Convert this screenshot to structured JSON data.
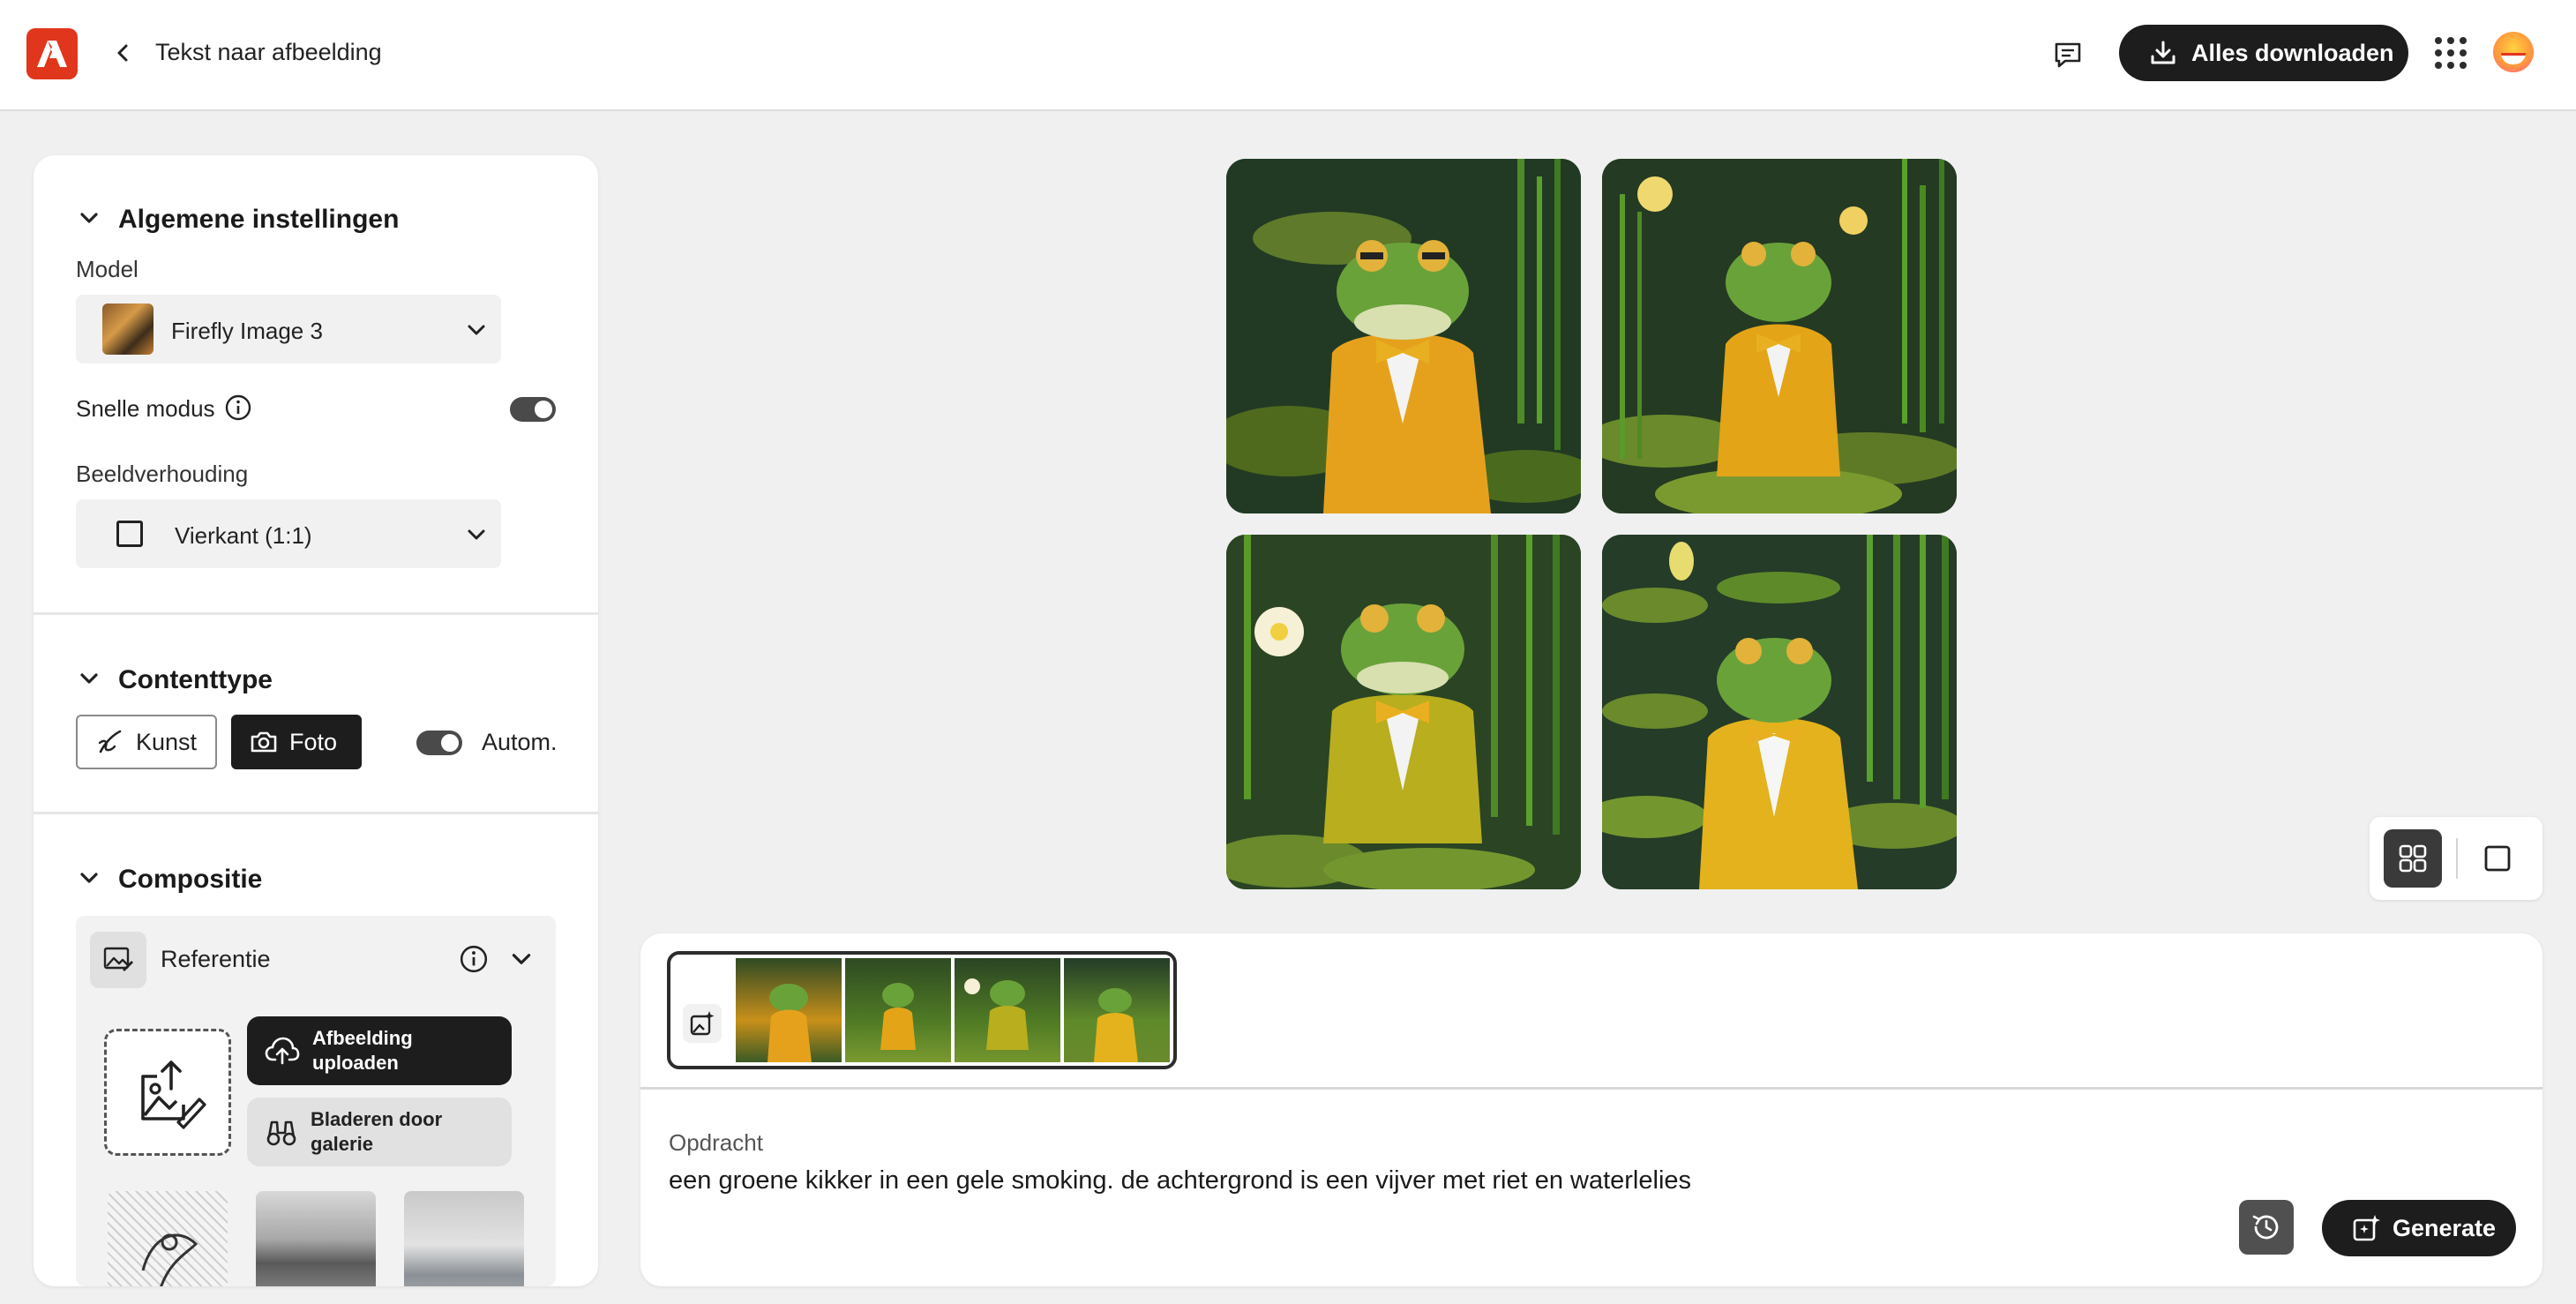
{
  "header": {
    "title": "Tekst naar afbeelding",
    "download_label": "Alles downloaden",
    "logo_icon": "adobe-logo-icon",
    "brand_color": "#e0361c"
  },
  "panel": {
    "general": {
      "title": "Algemene instellingen",
      "model_label": "Model",
      "model_value": "Firefly Image 3",
      "fast_mode_label": "Snelle modus",
      "fast_mode_on": true,
      "aspect_label": "Beeldverhouding",
      "aspect_value": "Vierkant (1:1)"
    },
    "content_type": {
      "title": "Contenttype",
      "art_label": "Kunst",
      "photo_label": "Foto",
      "auto_label": "Autom.",
      "auto_on": true
    },
    "composition": {
      "title": "Compositie",
      "reference_label": "Referentie",
      "upload_label": "Afbeelding uploaden",
      "browse_label": "Bladeren door galerie"
    }
  },
  "prompt": {
    "label": "Opdracht",
    "text": "een groene kikker in een gele smoking. de achtergrond is een vijver met riet en waterlelies",
    "generate_label": "Generate"
  }
}
